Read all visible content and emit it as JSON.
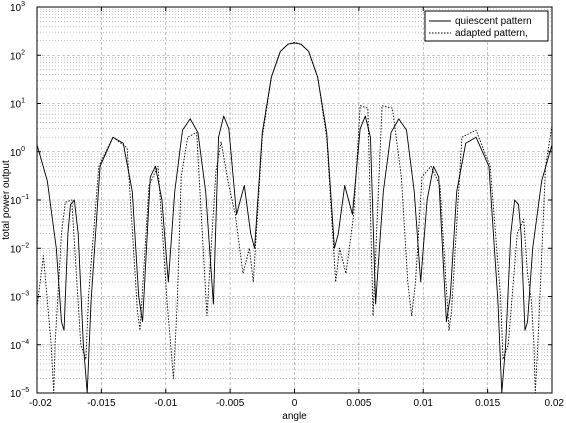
{
  "chart_data": {
    "type": "line",
    "title": "",
    "xlabel": "angle",
    "ylabel": "total power output",
    "xlim": [
      -0.02,
      0.02
    ],
    "ylim": [
      1e-05,
      1000
    ],
    "yscale": "log",
    "grid": true,
    "legend_position": "top-right",
    "x_ticks": [
      "-0.02",
      "-0.015",
      "-0.01",
      "-0.005",
      "0",
      "0.005",
      "0.01",
      "0.015",
      "0.02"
    ],
    "x_tick_values": [
      -0.02,
      -0.015,
      -0.01,
      -0.005,
      0,
      0.005,
      0.01,
      0.015,
      0.02
    ],
    "y_ticks": [
      {
        "value": 1e-05,
        "mant": "10",
        "exp": "−5"
      },
      {
        "value": 0.0001,
        "mant": "10",
        "exp": "−4"
      },
      {
        "value": 0.001,
        "mant": "10",
        "exp": "−3"
      },
      {
        "value": 0.01,
        "mant": "10",
        "exp": "−2"
      },
      {
        "value": 0.1,
        "mant": "10",
        "exp": "−1"
      },
      {
        "value": 1,
        "mant": "10",
        "exp": "0"
      },
      {
        "value": 10,
        "mant": "10",
        "exp": "1"
      },
      {
        "value": 100,
        "mant": "10",
        "exp": "2"
      },
      {
        "value": 1000,
        "mant": "10",
        "exp": "3"
      }
    ],
    "series": [
      {
        "name": "quiescent pattern",
        "style": "solid",
        "color": "#000000",
        "x": [
          -0.02,
          -0.0192,
          -0.0185,
          -0.0181,
          -0.0179,
          -0.0176,
          -0.0174,
          -0.0171,
          -0.0168,
          -0.0164,
          -0.0161,
          -0.0158,
          -0.0151,
          -0.0141,
          -0.0133,
          -0.0126,
          -0.0121,
          -0.0118,
          -0.0112,
          -0.0108,
          -0.0103,
          -0.0098,
          -0.0093,
          -0.0087,
          -0.0081,
          -0.0075,
          -0.0069,
          -0.0063,
          -0.0059,
          -0.0055,
          -0.0051,
          -0.0045,
          -0.0039,
          -0.0034,
          -0.0031,
          -0.0025,
          -0.0018,
          -0.0011,
          -0.0005,
          0,
          0.0005,
          0.0011,
          0.0018,
          0.0025,
          0.0031,
          0.0034,
          0.0039,
          0.0045,
          0.0051,
          0.0055,
          0.0059,
          0.0063,
          0.0069,
          0.0075,
          0.0081,
          0.0087,
          0.0093,
          0.0098,
          0.0103,
          0.0108,
          0.0112,
          0.0118,
          0.0121,
          0.0126,
          0.0133,
          0.0141,
          0.0151,
          0.0158,
          0.0161,
          0.0164,
          0.0168,
          0.0171,
          0.0174,
          0.0176,
          0.0179,
          0.0181,
          0.0185,
          0.0192,
          0.02
        ],
        "y": [
          1.4,
          0.25,
          0.01,
          0.0003,
          0.0002,
          0.02,
          0.08,
          0.1,
          0.02,
          0.0001,
          1e-05,
          0.0008,
          0.5,
          2.0,
          1.5,
          0.15,
          0.001,
          0.0003,
          0.3,
          0.5,
          0.1,
          0.002,
          0.15,
          2.8,
          4.8,
          2.5,
          0.15,
          0.0007,
          2.0,
          5.5,
          3.0,
          0.05,
          0.2,
          0.02,
          0.01,
          2.5,
          35,
          120,
          170,
          180,
          170,
          120,
          35,
          2.5,
          0.01,
          0.02,
          0.2,
          0.05,
          3.0,
          5.5,
          2.0,
          0.0007,
          0.15,
          2.5,
          4.8,
          2.8,
          0.15,
          0.002,
          0.1,
          0.5,
          0.3,
          0.0003,
          0.001,
          0.15,
          1.5,
          2.0,
          0.5,
          0.0008,
          1e-05,
          0.0001,
          0.02,
          0.1,
          0.08,
          0.02,
          0.0002,
          0.0003,
          0.01,
          0.25,
          1.4
        ]
      },
      {
        "name": "adapted pattern,",
        "style": "dotted",
        "color": "#000000",
        "x": [
          -0.02,
          -0.0195,
          -0.0189,
          -0.0187,
          -0.0186,
          -0.0184,
          -0.0181,
          -0.0178,
          -0.0173,
          -0.0166,
          -0.0162,
          -0.016,
          -0.0152,
          -0.0141,
          -0.013,
          -0.0122,
          -0.012,
          -0.0113,
          -0.0106,
          -0.0099,
          -0.0094,
          -0.0091,
          -0.0088,
          -0.0083,
          -0.0076,
          -0.0068,
          -0.0061,
          -0.0057,
          -0.0051,
          -0.0046,
          -0.004,
          -0.0035,
          -0.0032,
          -0.0025,
          -0.0018,
          -0.0011,
          -0.0005,
          0,
          0.0005,
          0.0011,
          0.0018,
          0.0025,
          0.0032,
          0.0035,
          0.004,
          0.0046,
          0.0051,
          0.0057,
          0.0061,
          0.0068,
          0.0076,
          0.0083,
          0.0088,
          0.0091,
          0.0094,
          0.0099,
          0.0106,
          0.0113,
          0.012,
          0.0122,
          0.013,
          0.0141,
          0.0152,
          0.016,
          0.0162,
          0.0166,
          0.0173,
          0.0178,
          0.0181,
          0.0184,
          0.0186,
          0.0187,
          0.0189,
          0.0195,
          0.02
        ],
        "y": [
          0.0006,
          0.007,
          0.0001,
          1e-05,
          0.0001,
          0.0008,
          0.02,
          0.09,
          0.1,
          0.0001,
          5e-05,
          0.001,
          0.5,
          2.0,
          1.2,
          0.0005,
          0.0002,
          0.2,
          0.5,
          0.0008,
          2e-05,
          0.0008,
          0.3,
          2.0,
          2.5,
          0.0004,
          0.4,
          1.6,
          0.2,
          0.05,
          0.003,
          0.01,
          0.002,
          2.0,
          35,
          120,
          170,
          185,
          170,
          120,
          35,
          2.0,
          0.002,
          0.01,
          0.003,
          0.05,
          9.0,
          8.0,
          0.0004,
          9.0,
          8.0,
          0.3,
          0.002,
          0.0004,
          0.002,
          0.3,
          0.5,
          0.2,
          0.0002,
          0.0005,
          2.0,
          2.8,
          0.5,
          0.001,
          5e-05,
          0.0001,
          0.02,
          0.04,
          0.003,
          0.0008,
          0.0001,
          1e-05,
          0.0001,
          0.5,
          3.5
        ]
      }
    ]
  }
}
